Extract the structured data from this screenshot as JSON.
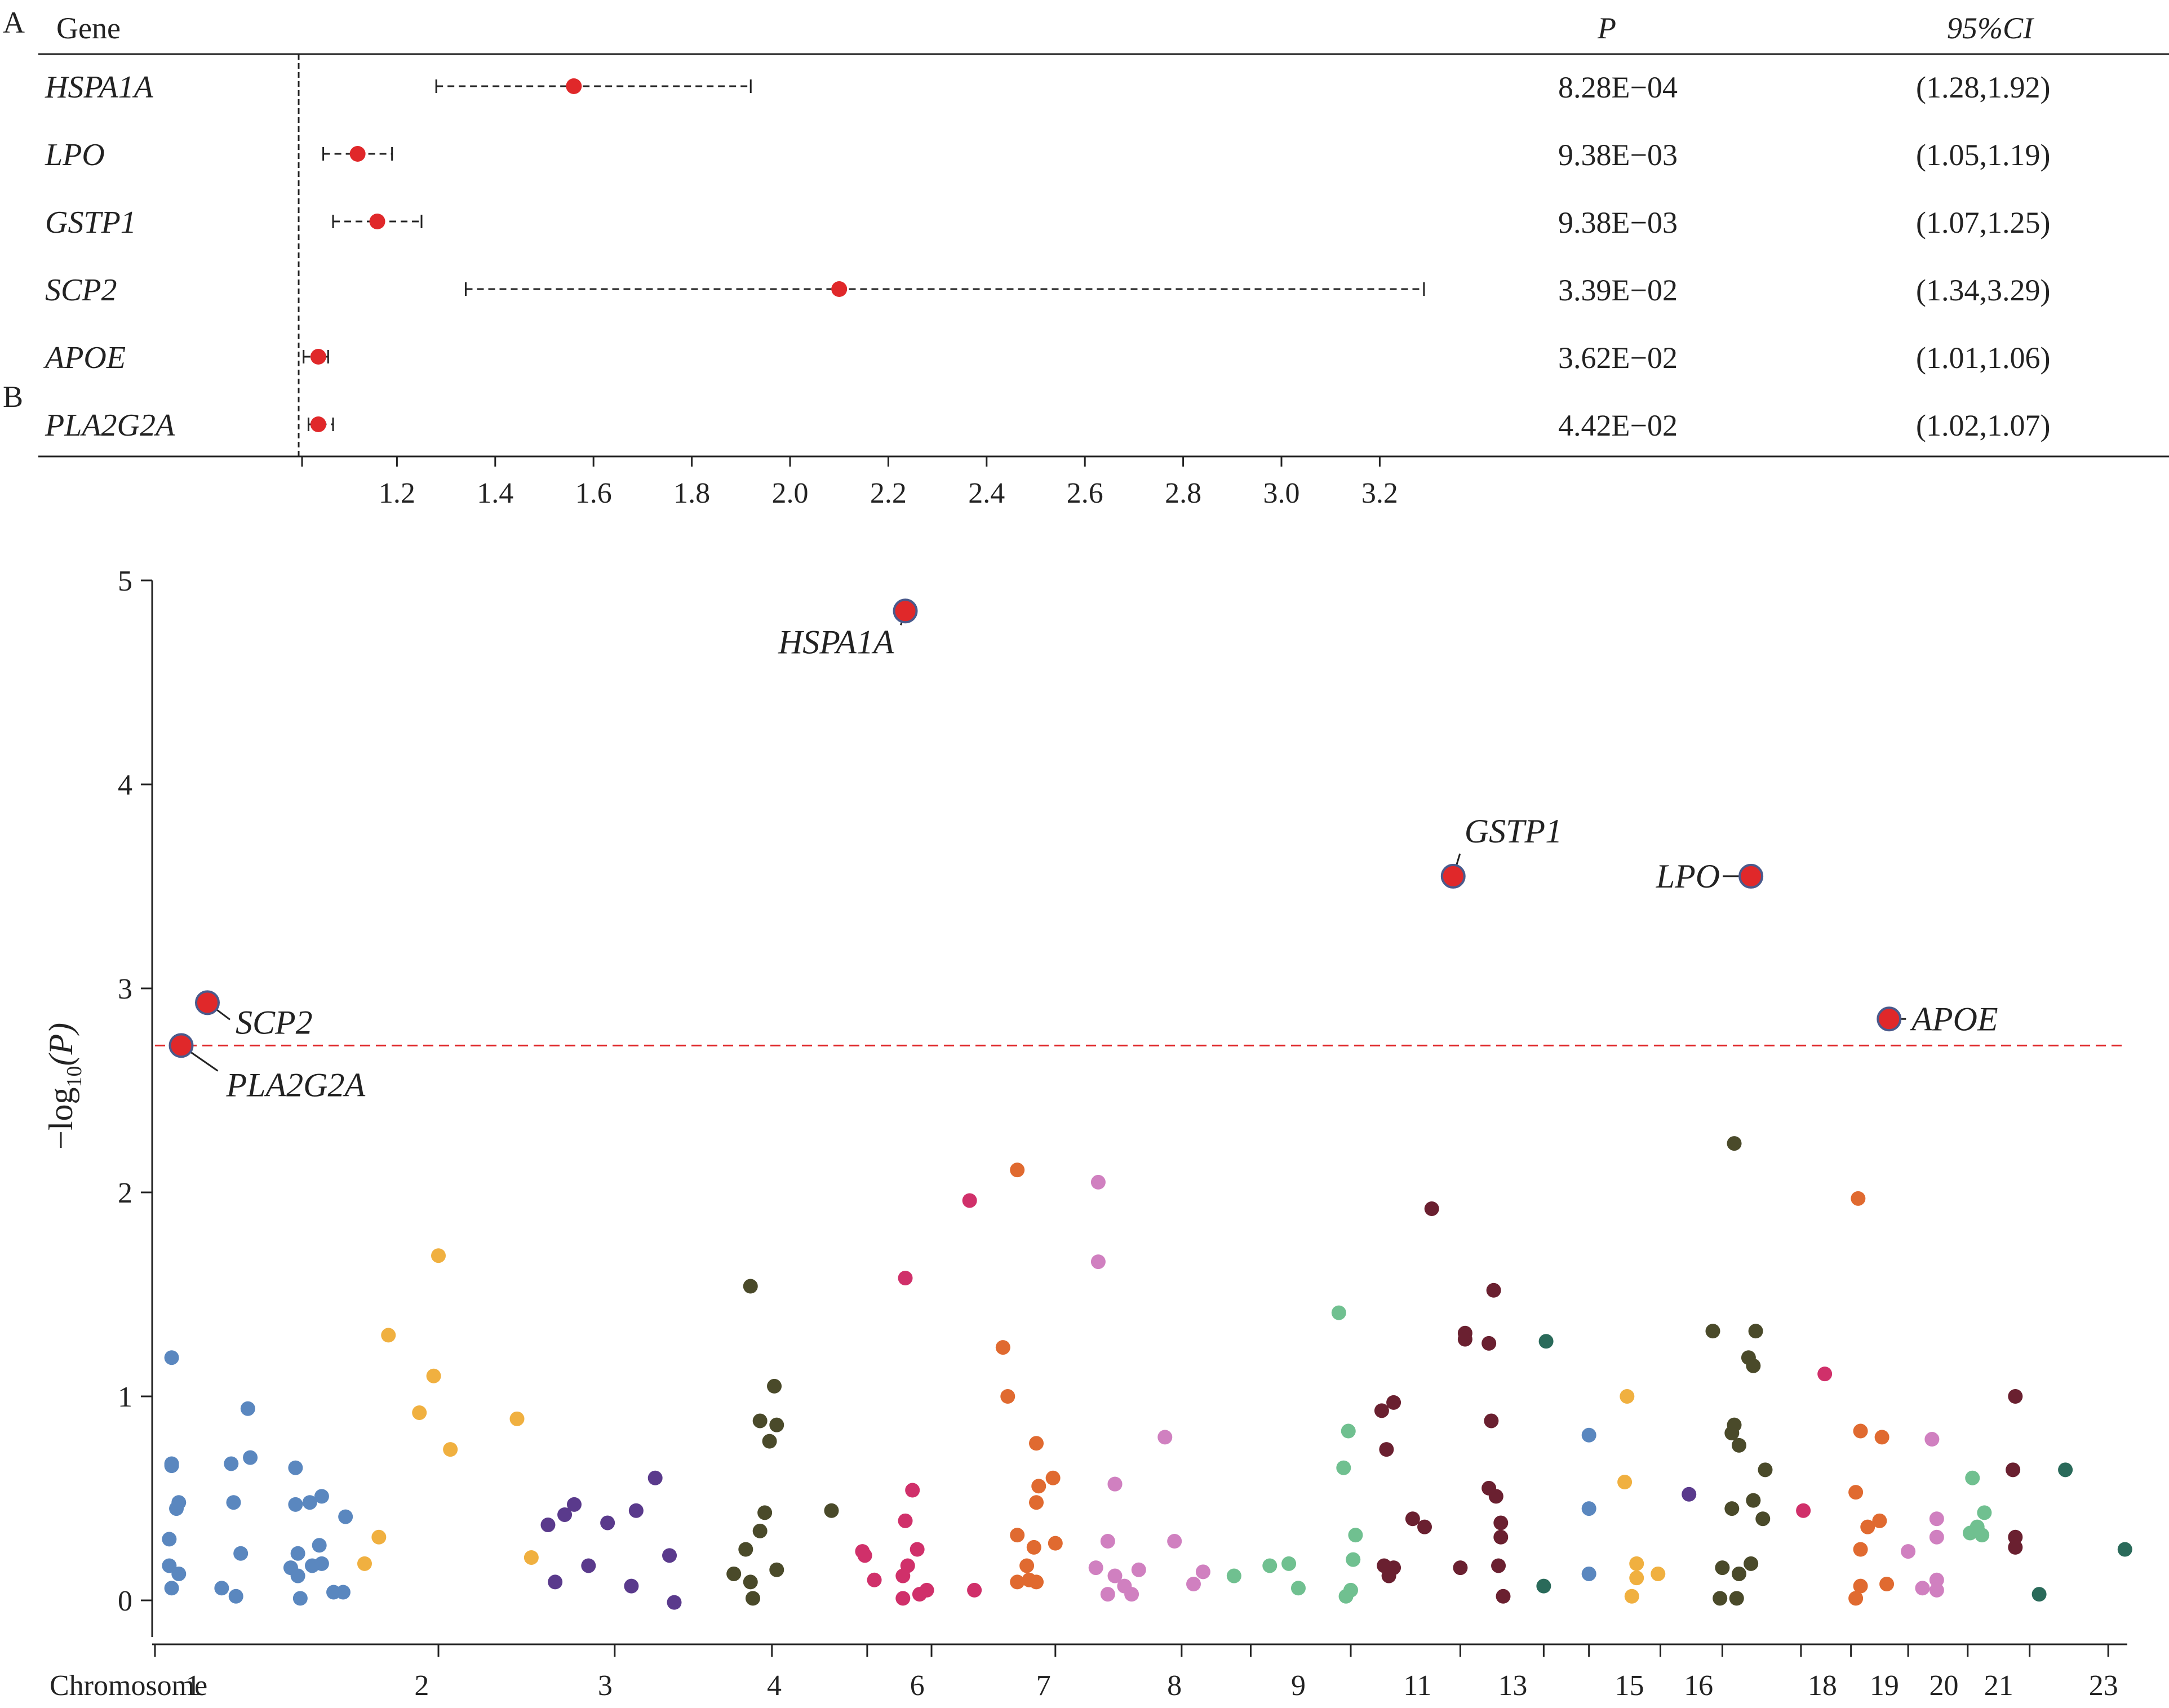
{
  "panel_a": {
    "label": "A",
    "header": {
      "gene": "Gene",
      "p": "P",
      "ci": "95%CI"
    },
    "rows": [
      {
        "gene": "HSPA1A",
        "color": "#222222",
        "or": 1.56,
        "lo": 1.28,
        "hi": 1.92,
        "p": "8.28E−04",
        "ci": "(1.28,1.92)"
      },
      {
        "gene": "LPO",
        "color": "#4a5a8c",
        "or": 1.12,
        "lo": 1.05,
        "hi": 1.19,
        "p": "9.38E−03",
        "ci": "(1.05,1.19)"
      },
      {
        "gene": "GSTP1",
        "color": "#e06a30",
        "or": 1.16,
        "lo": 1.07,
        "hi": 1.25,
        "p": "9.38E−03",
        "ci": "(1.07,1.25)"
      },
      {
        "gene": "SCP2",
        "color": "#c0282a",
        "or": 2.1,
        "lo": 1.34,
        "hi": 3.29,
        "p": "3.39E−02",
        "ci": "(1.34,3.29)"
      },
      {
        "gene": "APOE",
        "color": "#222222",
        "or": 1.04,
        "lo": 1.01,
        "hi": 1.06,
        "p": "3.62E−02",
        "ci": "(1.01,1.06)"
      },
      {
        "gene": "PLA2G2A",
        "color": "#222222",
        "or": 1.04,
        "lo": 1.02,
        "hi": 1.07,
        "p": "4.42E−02",
        "ci": "(1.02,1.07)"
      }
    ],
    "ref_line": 1.0,
    "x_ticks": [
      "1.2",
      "1.4",
      "1.6",
      "1.8",
      "2.0",
      "2.2",
      "2.4",
      "2.6",
      "2.8",
      "3.0",
      "3.2"
    ]
  },
  "chart_data": [
    {
      "type": "scatter",
      "title": "",
      "panel": "A",
      "description_kind": "forest",
      "xlabel": "",
      "xlim": [
        1.0,
        3.3
      ],
      "categories": [
        "HSPA1A",
        "LPO",
        "GSTP1",
        "SCP2",
        "APOE",
        "PLA2G2A"
      ],
      "values": [
        1.56,
        1.12,
        1.16,
        2.1,
        1.04,
        1.04
      ],
      "ci_low": [
        1.28,
        1.05,
        1.07,
        1.34,
        1.01,
        1.02
      ],
      "ci_high": [
        1.92,
        1.19,
        1.25,
        3.29,
        1.06,
        1.07
      ]
    },
    {
      "type": "scatter",
      "panel": "B",
      "title": "",
      "xlabel": "Chromosome",
      "ylabel": "−log10(P)",
      "ylim": [
        0,
        5
      ],
      "y_ticks": [
        "0",
        "1",
        "2",
        "3",
        "4",
        "5"
      ],
      "threshold": 2.72,
      "threshold_color": "#e0282a",
      "chromosome_labels": [
        "1",
        "2",
        "3",
        "4",
        "6",
        "7",
        "8",
        "9",
        "11",
        "13",
        "15",
        "16",
        "18",
        "19",
        "20",
        "21",
        "23"
      ],
      "chromosome_label_pos": [
        1.6,
        11.2,
        18.9,
        26.0,
        32.0,
        37.3,
        42.8,
        48.0,
        53.0,
        57.0,
        61.9,
        64.8,
        70.0,
        72.6,
        75.1,
        77.4,
        81.8
      ],
      "chromosome_ticks": [
        0,
        11.9,
        19.3,
        25.9,
        29.9,
        32.6,
        37.8,
        43.1,
        46.0,
        50.2,
        54.8,
        58.3,
        60.2,
        63.2,
        65.8,
        69.1,
        71.2,
        73.6,
        76.1,
        78.7,
        82.0
      ],
      "xlim": [
        0,
        82.8
      ],
      "labeled_points": [
        {
          "label": "HSPA1A",
          "x": 31.5,
          "y": 4.85,
          "color": "#e0282a"
        },
        {
          "label": "GSTP1",
          "x": 54.5,
          "y": 3.55,
          "color": "#e0282a"
        },
        {
          "label": "LPO",
          "x": 67.0,
          "y": 3.55,
          "color": "#e0282a"
        },
        {
          "label": "SCP2",
          "x": 2.2,
          "y": 2.93,
          "color": "#e0282a"
        },
        {
          "label": "PLA2G2A",
          "x": 1.1,
          "y": 2.72,
          "color": "#e0282a"
        },
        {
          "label": "APOE",
          "x": 72.8,
          "y": 2.85,
          "color": "#e0282a"
        }
      ],
      "groups": [
        {
          "chr": "1",
          "color": "#5a87bf",
          "points": [
            [
              0.7,
              1.19
            ],
            [
              0.7,
              0.67
            ],
            [
              0.7,
              0.66
            ],
            [
              0.9,
              0.45
            ],
            [
              1.0,
              0.48
            ],
            [
              0.6,
              0.3
            ],
            [
              0.6,
              0.17
            ],
            [
              0.7,
              0.06
            ],
            [
              1.0,
              0.13
            ],
            [
              3.2,
              0.67
            ],
            [
              4.0,
              0.7
            ],
            [
              3.9,
              0.94
            ],
            [
              3.3,
              0.48
            ],
            [
              3.6,
              0.23
            ],
            [
              2.8,
              0.06
            ],
            [
              3.4,
              0.02
            ],
            [
              5.9,
              0.65
            ],
            [
              5.9,
              0.47
            ],
            [
              6.5,
              0.48
            ],
            [
              7.0,
              0.51
            ],
            [
              6.0,
              0.23
            ],
            [
              5.7,
              0.16
            ],
            [
              6.6,
              0.17
            ],
            [
              7.0,
              0.18
            ],
            [
              6.9,
              0.27
            ],
            [
              6.0,
              0.12
            ],
            [
              8.0,
              0.41
            ],
            [
              7.5,
              0.04
            ],
            [
              7.9,
              0.04
            ],
            [
              6.1,
              0.01
            ]
          ]
        },
        {
          "chr": "2",
          "color": "#f0b040",
          "points": [
            [
              9.8,
              1.3
            ],
            [
              11.9,
              1.69
            ],
            [
              11.7,
              1.1
            ],
            [
              11.1,
              0.92
            ],
            [
              12.4,
              0.74
            ],
            [
              15.2,
              0.89
            ],
            [
              9.4,
              0.31
            ],
            [
              8.8,
              0.18
            ],
            [
              15.8,
              0.21
            ]
          ]
        },
        {
          "chr": "3",
          "color": "#5a3a8c",
          "points": [
            [
              16.5,
              0.37
            ],
            [
              17.2,
              0.42
            ],
            [
              17.6,
              0.47
            ],
            [
              19.0,
              0.38
            ],
            [
              20.2,
              0.44
            ],
            [
              21.0,
              0.6
            ],
            [
              16.8,
              0.09
            ],
            [
              18.2,
              0.17
            ],
            [
              20.0,
              0.07
            ],
            [
              21.6,
              0.22
            ],
            [
              21.8,
              -0.01
            ]
          ]
        },
        {
          "chr": "4",
          "color": "#4a4a2a",
          "points": [
            [
              25.0,
              1.54
            ],
            [
              26.0,
              1.05
            ],
            [
              25.4,
              0.88
            ],
            [
              26.1,
              0.86
            ],
            [
              25.8,
              0.78
            ],
            [
              25.6,
              0.43
            ],
            [
              25.4,
              0.34
            ],
            [
              24.8,
              0.25
            ],
            [
              26.1,
              0.15
            ],
            [
              24.3,
              0.13
            ],
            [
              25.0,
              0.09
            ],
            [
              25.1,
              0.01
            ],
            [
              28.4,
              0.44
            ]
          ]
        },
        {
          "chr": "6",
          "color": "#d0306a",
          "points": [
            [
              31.5,
              1.58
            ],
            [
              34.2,
              1.96
            ],
            [
              31.8,
              0.54
            ],
            [
              31.5,
              0.39
            ],
            [
              29.7,
              0.24
            ],
            [
              29.8,
              0.22
            ],
            [
              31.6,
              0.17
            ],
            [
              32.0,
              0.25
            ],
            [
              31.4,
              0.12
            ],
            [
              30.2,
              0.1
            ],
            [
              32.4,
              0.05
            ],
            [
              32.1,
              0.03
            ],
            [
              31.4,
              0.01
            ],
            [
              34.4,
              0.05
            ]
          ]
        },
        {
          "chr": "7",
          "color": "#e06a30",
          "points": [
            [
              36.2,
              2.11
            ],
            [
              35.6,
              1.24
            ],
            [
              35.8,
              1.0
            ],
            [
              37.0,
              0.77
            ],
            [
              37.1,
              0.56
            ],
            [
              37.0,
              0.48
            ],
            [
              37.7,
              0.6
            ],
            [
              36.2,
              0.32
            ],
            [
              36.9,
              0.26
            ],
            [
              36.6,
              0.17
            ],
            [
              36.7,
              0.1
            ],
            [
              36.2,
              0.09
            ],
            [
              37.0,
              0.09
            ],
            [
              37.8,
              0.28
            ]
          ]
        },
        {
          "chr": "8",
          "color": "#d080c0",
          "points": [
            [
              39.6,
              2.05
            ],
            [
              39.6,
              1.66
            ],
            [
              42.4,
              0.8
            ],
            [
              40.3,
              0.57
            ],
            [
              40.3,
              0.57
            ],
            [
              40.0,
              0.29
            ],
            [
              42.8,
              0.29
            ],
            [
              39.5,
              0.16
            ],
            [
              40.3,
              0.12
            ],
            [
              41.3,
              0.15
            ],
            [
              44.0,
              0.14
            ],
            [
              40.7,
              0.07
            ],
            [
              41.0,
              0.03
            ],
            [
              43.6,
              0.08
            ],
            [
              40.0,
              0.03
            ]
          ]
        },
        {
          "chr": "9",
          "color": "#70c090",
          "points": [
            [
              45.3,
              0.12
            ],
            [
              46.8,
              0.17
            ],
            [
              47.6,
              0.18
            ],
            [
              49.7,
              1.41
            ],
            [
              50.1,
              0.83
            ],
            [
              49.9,
              0.65
            ],
            [
              50.4,
              0.32
            ],
            [
              50.3,
              0.2
            ],
            [
              50.2,
              0.05
            ],
            [
              50.0,
              0.02
            ],
            [
              48.0,
              0.06
            ]
          ]
        },
        {
          "chr": "11",
          "color": "#6a2030",
          "points": [
            [
              53.6,
              1.92
            ],
            [
              55.0,
              1.31
            ],
            [
              56.2,
              1.52
            ],
            [
              55.0,
              1.28
            ],
            [
              56.0,
              1.26
            ],
            [
              52.0,
              0.97
            ],
            [
              51.5,
              0.93
            ],
            [
              51.7,
              0.74
            ],
            [
              56.1,
              0.88
            ],
            [
              56.0,
              0.55
            ],
            [
              56.3,
              0.51
            ],
            [
              52.8,
              0.4
            ],
            [
              53.3,
              0.36
            ],
            [
              56.5,
              0.38
            ],
            [
              56.5,
              0.31
            ],
            [
              51.6,
              0.17
            ],
            [
              52.0,
              0.16
            ],
            [
              54.8,
              0.16
            ],
            [
              56.4,
              0.17
            ],
            [
              51.8,
              0.12
            ],
            [
              56.6,
              0.02
            ]
          ]
        },
        {
          "chr": "13",
          "color": "#2a6a5a",
          "points": [
            [
              58.4,
              1.27
            ],
            [
              58.3,
              0.07
            ]
          ]
        },
        {
          "chr": "14",
          "color": "#5a87bf",
          "points": [
            [
              60.2,
              0.81
            ],
            [
              60.2,
              0.45
            ],
            [
              60.2,
              0.13
            ]
          ]
        },
        {
          "chr": "15",
          "color": "#f0b040",
          "points": [
            [
              61.8,
              1.0
            ],
            [
              61.7,
              0.58
            ],
            [
              62.2,
              0.18
            ],
            [
              62.2,
              0.11
            ],
            [
              63.1,
              0.13
            ],
            [
              62.0,
              0.02
            ]
          ]
        },
        {
          "chr": "16",
          "color": "#5a3a8c",
          "points": [
            [
              64.4,
              0.52
            ]
          ]
        },
        {
          "chr": "17",
          "color": "#4a4a2a",
          "points": [
            [
              66.3,
              2.24
            ],
            [
              65.4,
              1.32
            ],
            [
              67.2,
              1.32
            ],
            [
              66.9,
              1.19
            ],
            [
              67.1,
              1.15
            ],
            [
              66.3,
              0.86
            ],
            [
              66.2,
              0.82
            ],
            [
              66.5,
              0.76
            ],
            [
              67.6,
              0.64
            ],
            [
              67.1,
              0.49
            ],
            [
              66.2,
              0.45
            ],
            [
              67.5,
              0.4
            ],
            [
              67.0,
              0.18
            ],
            [
              65.8,
              0.16
            ],
            [
              66.5,
              0.13
            ],
            [
              65.7,
              0.01
            ],
            [
              66.4,
              0.01
            ]
          ]
        },
        {
          "chr": "18",
          "color": "#d0306a",
          "points": [
            [
              70.1,
              1.11
            ],
            [
              69.2,
              0.44
            ]
          ]
        },
        {
          "chr": "19",
          "color": "#e06a30",
          "points": [
            [
              71.5,
              1.97
            ],
            [
              71.6,
              0.83
            ],
            [
              72.5,
              0.8
            ],
            [
              71.4,
              0.53
            ],
            [
              71.9,
              0.36
            ],
            [
              72.4,
              0.39
            ],
            [
              71.6,
              0.25
            ],
            [
              72.7,
              0.08
            ],
            [
              71.6,
              0.07
            ],
            [
              71.4,
              0.01
            ]
          ]
        },
        {
          "chr": "20",
          "color": "#d080c0",
          "points": [
            [
              74.6,
              0.79
            ],
            [
              74.8,
              0.4
            ],
            [
              74.8,
              0.31
            ],
            [
              73.6,
              0.24
            ],
            [
              74.8,
              0.1
            ],
            [
              74.8,
              0.05
            ],
            [
              74.2,
              0.06
            ]
          ]
        },
        {
          "chr": "21",
          "color": "#70c090",
          "points": [
            [
              76.3,
              0.6
            ],
            [
              76.8,
              0.43
            ],
            [
              76.5,
              0.36
            ],
            [
              76.2,
              0.33
            ],
            [
              76.7,
              0.32
            ]
          ]
        },
        {
          "chr": "22",
          "color": "#6a2030",
          "points": [
            [
              78.1,
              1.0
            ],
            [
              78.0,
              0.64
            ],
            [
              78.1,
              0.31
            ],
            [
              78.1,
              0.26
            ]
          ]
        },
        {
          "chr": "23",
          "color": "#2a6a5a",
          "points": [
            [
              80.2,
              0.64
            ],
            [
              82.7,
              0.25
            ],
            [
              79.1,
              0.03
            ]
          ]
        }
      ]
    }
  ],
  "panel_b": {
    "label": "B",
    "ylabel_main": "−log",
    "ylabel_sub": "10",
    "ylabel_tail": "(P)",
    "xlabel": "Chromosome"
  }
}
